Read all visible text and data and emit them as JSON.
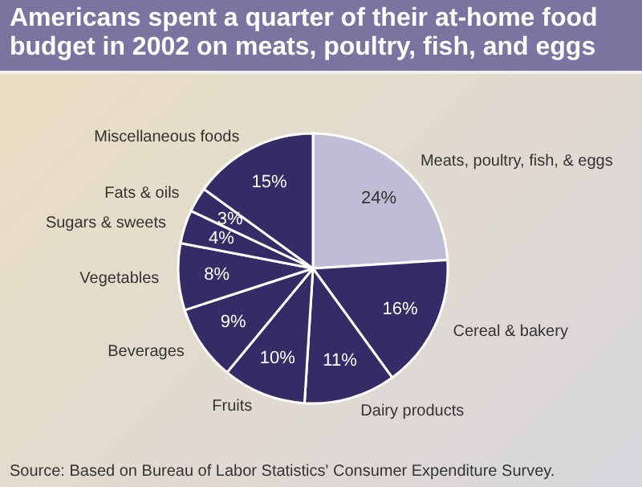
{
  "chart_data": {
    "type": "pie",
    "title": "Americans spent a quarter of their at-home food budget in 2002 on meats, poultry, fish, and eggs",
    "categories": [
      "Meats, poultry, fish, & eggs",
      "Cereal & bakery",
      "Dairy products",
      "Fruits",
      "Beverages",
      "Vegetables",
      "Sugars & sweets",
      "Fats & oils",
      "Miscellaneous foods"
    ],
    "values": [
      24,
      16,
      11,
      10,
      9,
      8,
      4,
      3,
      15
    ],
    "value_labels": [
      "24%",
      "16%",
      "11%",
      "10%",
      "9%",
      "8%",
      "4%",
      "3%",
      "15%"
    ],
    "colors": [
      "#bfbcd6",
      "#352b66",
      "#352b66",
      "#352b66",
      "#352b66",
      "#352b66",
      "#352b66",
      "#352b66",
      "#352b66"
    ],
    "annotations": [
      "Source: Based on Bureau of Labor Statistics' Consumer Expenditure Survey."
    ]
  }
}
